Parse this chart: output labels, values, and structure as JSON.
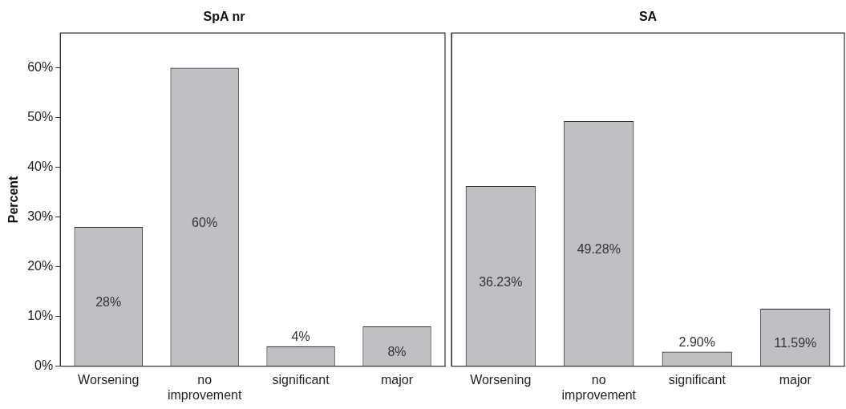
{
  "chart_data": [
    {
      "type": "bar",
      "title": "SpA nr",
      "ylabel": "Percent",
      "categories": [
        "Worsening",
        "no improvement",
        "significant",
        "major"
      ],
      "values": [
        28,
        60,
        4,
        8
      ],
      "value_labels": [
        "28%",
        "60%",
        "4%",
        "8%"
      ],
      "color": "#c0c0c4",
      "ylim": [
        0,
        67
      ],
      "yticks": [
        {
          "value": 0,
          "label": "0%"
        },
        {
          "value": 10,
          "label": "10%"
        },
        {
          "value": 20,
          "label": "20%"
        },
        {
          "value": 30,
          "label": "30%"
        },
        {
          "value": 40,
          "label": "40%"
        },
        {
          "value": 50,
          "label": "50%"
        },
        {
          "value": 60,
          "label": "60%"
        }
      ],
      "grid": false
    },
    {
      "type": "bar",
      "title": "SA",
      "categories": [
        "Worsening",
        "no improvement",
        "significant",
        "major"
      ],
      "values": [
        36.23,
        49.28,
        2.9,
        11.59
      ],
      "value_labels": [
        "36.23%",
        "49.28%",
        "2.90%",
        "11.59%"
      ],
      "color": "#c0c0c4",
      "ylim": [
        0,
        67
      ],
      "grid": false,
      "tick_labels": "x"
    }
  ]
}
